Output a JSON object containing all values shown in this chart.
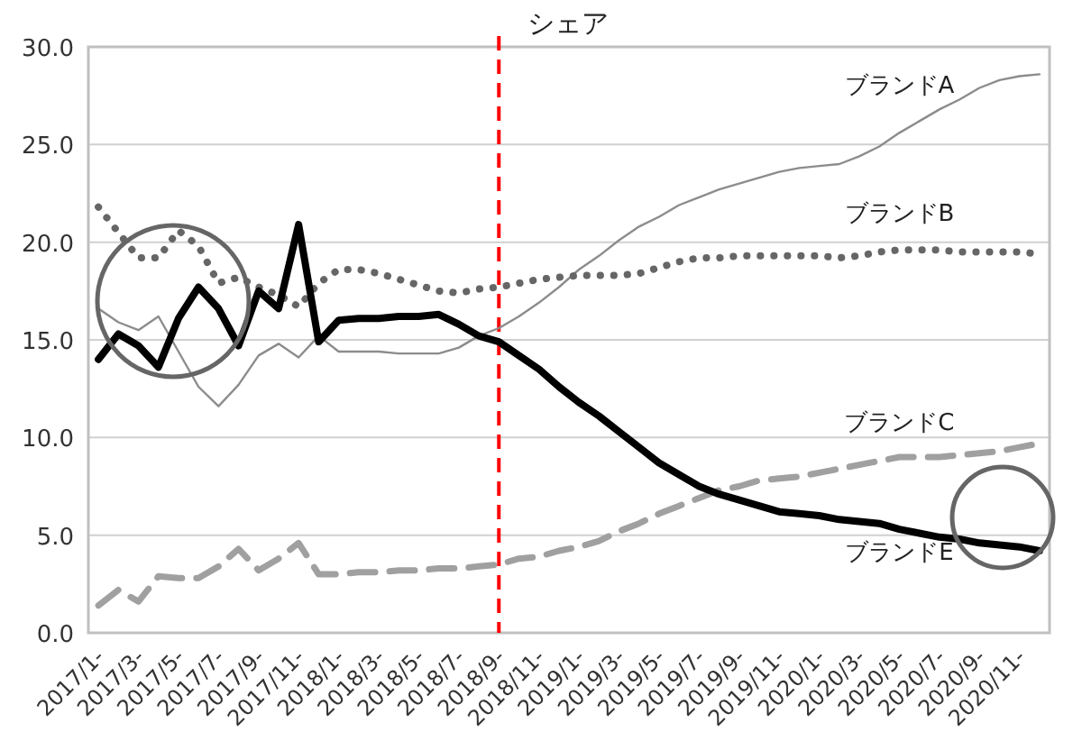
{
  "chart_data": {
    "type": "line",
    "title": "シェア",
    "categories": [
      "2017/1-",
      null,
      "2017/3-",
      null,
      "2017/5-",
      null,
      "2017/7-",
      null,
      "2017/9-",
      null,
      "2017/11-",
      null,
      "2018/1-",
      null,
      "2018/3-",
      null,
      "2018/5-",
      null,
      "2018/7-",
      null,
      "2018/9-",
      null,
      "2018/11-",
      null,
      "2019/1-",
      null,
      "2019/3-",
      null,
      "2019/5-",
      null,
      "2019/7-",
      null,
      "2019/9-",
      null,
      "2019/11-",
      null,
      "2020/1-",
      null,
      "2020/3-",
      null,
      "2020/5-",
      null,
      "2020/7-",
      null,
      "2020/9-",
      null,
      "2020/11-",
      null
    ],
    "series": [
      {
        "name": "ブランドA",
        "color": "#8c8c8c",
        "line_style": "solid",
        "values": [
          16.6,
          15.9,
          15.5,
          16.2,
          14.4,
          12.6,
          11.6,
          12.7,
          14.2,
          14.8,
          14.1,
          15.2,
          14.4,
          14.4,
          14.4,
          14.3,
          14.3,
          14.3,
          14.6,
          15.2,
          15.6,
          16.2,
          16.9,
          17.7,
          18.6,
          19.3,
          20.1,
          20.8,
          21.3,
          21.9,
          22.3,
          22.7,
          23.0,
          23.3,
          23.6,
          23.8,
          23.9,
          24.0,
          24.4,
          24.9,
          25.6,
          26.2,
          26.8,
          27.3,
          27.9,
          28.3,
          28.5,
          28.6
        ]
      },
      {
        "name": "ブランドB",
        "color": "#666666",
        "line_style": "dotted",
        "values": [
          21.8,
          20.5,
          19.2,
          19.2,
          20.6,
          19.8,
          17.9,
          18.2,
          17.7,
          17.3,
          16.7,
          17.9,
          18.6,
          18.6,
          18.4,
          18.1,
          17.8,
          17.5,
          17.4,
          17.6,
          17.7,
          17.9,
          18.1,
          18.2,
          18.3,
          18.3,
          18.3,
          18.4,
          18.7,
          19.0,
          19.2,
          19.2,
          19.3,
          19.3,
          19.3,
          19.3,
          19.3,
          19.2,
          19.3,
          19.5,
          19.6,
          19.6,
          19.6,
          19.5,
          19.5,
          19.5,
          19.5,
          19.4
        ]
      },
      {
        "name": "ブランドC",
        "color": "#a0a0a0",
        "line_style": "dashed",
        "values": [
          1.4,
          2.2,
          1.6,
          2.9,
          2.8,
          2.8,
          3.4,
          4.3,
          3.2,
          3.8,
          4.6,
          3.0,
          3.0,
          3.1,
          3.1,
          3.2,
          3.2,
          3.3,
          3.3,
          3.4,
          3.5,
          3.8,
          3.9,
          4.2,
          4.4,
          4.7,
          5.2,
          5.6,
          6.1,
          6.5,
          6.9,
          7.3,
          7.5,
          7.8,
          7.9,
          8.0,
          8.2,
          8.4,
          8.6,
          8.8,
          9.0,
          9.0,
          9.0,
          9.1,
          9.2,
          9.3,
          9.5,
          9.7
        ]
      },
      {
        "name": "ブランドE",
        "color": "#000000",
        "line_style": "solid",
        "values": [
          14.0,
          15.3,
          14.7,
          13.6,
          16.1,
          17.7,
          16.6,
          14.7,
          17.5,
          16.6,
          20.9,
          14.9,
          16.0,
          16.1,
          16.1,
          16.2,
          16.2,
          16.3,
          15.8,
          15.2,
          14.9,
          14.2,
          13.5,
          12.6,
          11.8,
          11.1,
          10.3,
          9.5,
          8.7,
          8.1,
          7.5,
          7.1,
          6.8,
          6.5,
          6.2,
          6.1,
          6.0,
          5.8,
          5.7,
          5.6,
          5.3,
          5.1,
          4.9,
          4.8,
          4.6,
          4.5,
          4.4,
          4.2
        ]
      }
    ],
    "ylim": [
      0,
      30
    ],
    "yticks": [
      {
        "value": 0,
        "label": "0.0"
      },
      {
        "value": 5,
        "label": "5.0"
      },
      {
        "value": 10,
        "label": "10.0"
      },
      {
        "value": 15,
        "label": "15.0"
      },
      {
        "value": 20,
        "label": "20.0"
      },
      {
        "value": 25,
        "label": "25.0"
      },
      {
        "value": 30,
        "label": "30.0"
      }
    ],
    "grid": "y",
    "ref_lines": [
      {
        "axis": "x",
        "value": "2018/9-",
        "color": "#ff0000",
        "line_style": "dashed"
      }
    ]
  }
}
